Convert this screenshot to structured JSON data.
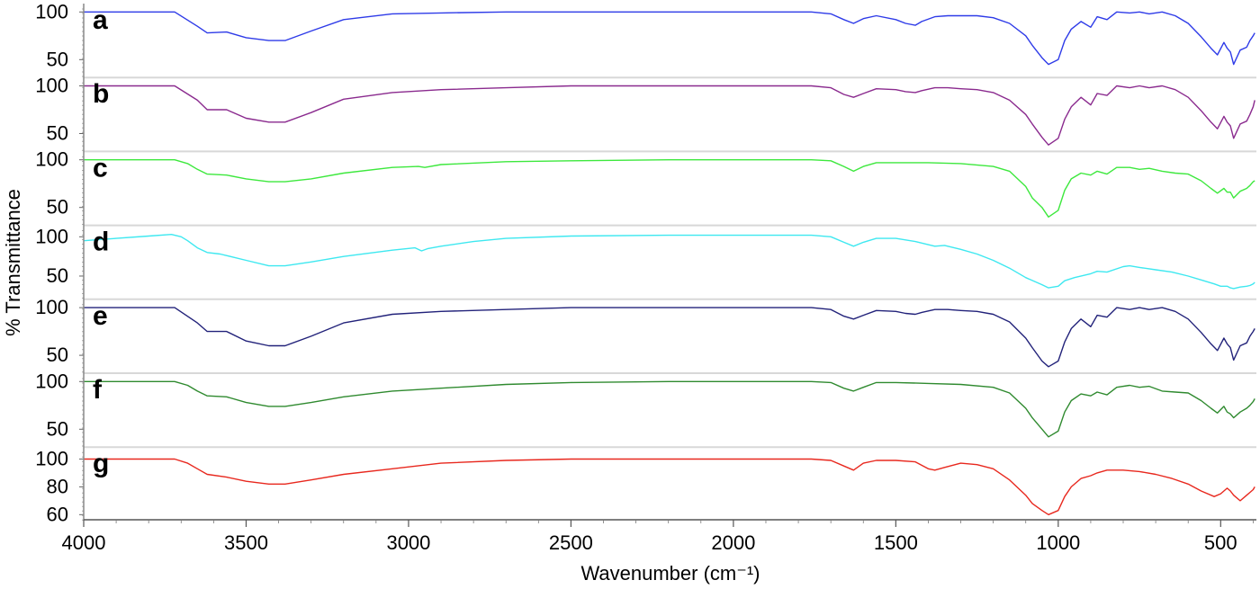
{
  "chart_data": {
    "type": "line",
    "title": "",
    "xlabel": "Wavenumber (cm⁻¹)",
    "ylabel": "% Transmittance",
    "xlim": [
      4000,
      390
    ],
    "x_ticks": [
      "4000",
      "3500",
      "3000",
      "2500",
      "2000",
      "1500",
      "1000",
      "500"
    ],
    "x_tick_values": [
      4000,
      3500,
      3000,
      2500,
      2000,
      1500,
      1000,
      500
    ],
    "grid": false,
    "legend": "none",
    "panels": [
      {
        "label": "a",
        "color": "#2e3be8",
        "ylim": [
          35,
          105
        ],
        "y_ticks": [
          "100",
          "50"
        ],
        "y_tick_values": [
          100,
          50
        ],
        "x": [
          4000,
          3720,
          3650,
          3620,
          3560,
          3500,
          3430,
          3380,
          3300,
          3200,
          3050,
          2900,
          2700,
          2500,
          2200,
          1900,
          1760,
          1700,
          1660,
          1630,
          1600,
          1560,
          1500,
          1470,
          1440,
          1420,
          1380,
          1340,
          1300,
          1250,
          1200,
          1150,
          1100,
          1080,
          1050,
          1030,
          1000,
          980,
          960,
          930,
          900,
          880,
          850,
          820,
          780,
          750,
          720,
          680,
          640,
          600,
          560,
          530,
          510,
          490,
          480,
          470,
          460,
          440,
          420,
          410,
          400,
          395
        ],
        "y": [
          100,
          100,
          85,
          78,
          79,
          73,
          70,
          70,
          80,
          92,
          98,
          99,
          100,
          100,
          100,
          100,
          100,
          98,
          92,
          88,
          93,
          96,
          92,
          88,
          86,
          90,
          95,
          96,
          96,
          96,
          94,
          88,
          75,
          65,
          52,
          45,
          50,
          70,
          82,
          90,
          84,
          95,
          92,
          100,
          99,
          100,
          98,
          100,
          96,
          88,
          74,
          62,
          55,
          68,
          62,
          58,
          45,
          60,
          63,
          70,
          75,
          78
        ]
      },
      {
        "label": "b",
        "color": "#8a2a8e",
        "ylim": [
          35,
          105
        ],
        "y_ticks": [
          "100",
          "50"
        ],
        "y_tick_values": [
          100,
          50
        ],
        "x": [
          4000,
          3720,
          3650,
          3620,
          3560,
          3500,
          3430,
          3380,
          3300,
          3200,
          3050,
          2900,
          2700,
          2500,
          2200,
          1900,
          1760,
          1700,
          1660,
          1630,
          1600,
          1560,
          1500,
          1470,
          1440,
          1420,
          1380,
          1340,
          1300,
          1250,
          1200,
          1150,
          1100,
          1080,
          1050,
          1030,
          1000,
          980,
          960,
          930,
          900,
          880,
          850,
          820,
          780,
          750,
          720,
          680,
          640,
          600,
          560,
          530,
          510,
          490,
          480,
          470,
          460,
          440,
          420,
          410,
          400,
          395
        ],
        "y": [
          100,
          100,
          85,
          75,
          75,
          66,
          62,
          62,
          72,
          86,
          93,
          96,
          98,
          100,
          100,
          100,
          100,
          98,
          91,
          88,
          92,
          97,
          96,
          94,
          93,
          95,
          98,
          98,
          97,
          96,
          93,
          85,
          70,
          60,
          46,
          38,
          45,
          65,
          78,
          88,
          80,
          92,
          90,
          100,
          98,
          100,
          98,
          100,
          96,
          88,
          74,
          62,
          55,
          68,
          62,
          58,
          45,
          60,
          63,
          70,
          78,
          85
        ]
      },
      {
        "label": "c",
        "color": "#3de83d",
        "ylim": [
          35,
          105
        ],
        "y_ticks": [
          "100",
          "50"
        ],
        "y_tick_values": [
          100,
          50
        ],
        "x": [
          4000,
          3720,
          3680,
          3650,
          3620,
          3560,
          3500,
          3430,
          3380,
          3300,
          3200,
          3050,
          2970,
          2950,
          2900,
          2700,
          2500,
          2200,
          1900,
          1760,
          1700,
          1660,
          1630,
          1600,
          1560,
          1500,
          1400,
          1300,
          1200,
          1150,
          1100,
          1080,
          1050,
          1030,
          1000,
          980,
          960,
          930,
          900,
          880,
          850,
          820,
          780,
          750,
          720,
          680,
          640,
          600,
          560,
          530,
          510,
          490,
          480,
          470,
          460,
          440,
          420,
          410,
          400,
          395
        ],
        "y": [
          100,
          100,
          96,
          90,
          85,
          84,
          80,
          77,
          77,
          80,
          86,
          92,
          93,
          92,
          95,
          98,
          99,
          100,
          100,
          100,
          99,
          93,
          88,
          93,
          97,
          97,
          97,
          96,
          93,
          88,
          72,
          60,
          50,
          40,
          47,
          68,
          80,
          86,
          84,
          88,
          85,
          92,
          92,
          90,
          91,
          88,
          86,
          85,
          78,
          70,
          65,
          70,
          66,
          66,
          60,
          67,
          70,
          73,
          77,
          78
        ]
      },
      {
        "label": "d",
        "color": "#3ee8f0",
        "ylim": [
          25,
          110
        ],
        "y_ticks": [
          "100",
          "50"
        ],
        "y_tick_values": [
          100,
          50
        ],
        "x": [
          4000,
          3900,
          3800,
          3730,
          3700,
          3680,
          3650,
          3620,
          3580,
          3500,
          3430,
          3380,
          3300,
          3200,
          3050,
          2980,
          2960,
          2940,
          2900,
          2800,
          2700,
          2500,
          2200,
          1900,
          1760,
          1700,
          1660,
          1630,
          1600,
          1560,
          1500,
          1440,
          1400,
          1380,
          1350,
          1300,
          1250,
          1200,
          1150,
          1100,
          1050,
          1030,
          1000,
          980,
          950,
          900,
          880,
          850,
          800,
          780,
          750,
          700,
          650,
          600,
          560,
          520,
          500,
          480,
          470,
          460,
          440,
          420,
          410,
          400,
          395
        ],
        "y": [
          95,
          98,
          101,
          103,
          100,
          95,
          86,
          80,
          78,
          70,
          63,
          63,
          68,
          75,
          83,
          86,
          82,
          85,
          88,
          94,
          98,
          101,
          102,
          102,
          102,
          100,
          93,
          88,
          93,
          98,
          98,
          94,
          90,
          88,
          89,
          84,
          78,
          70,
          60,
          48,
          39,
          35,
          37,
          44,
          48,
          53,
          56,
          55,
          62,
          63,
          61,
          58,
          55,
          50,
          45,
          40,
          37,
          37,
          35,
          34,
          36,
          37,
          38,
          40,
          42
        ]
      },
      {
        "label": "e",
        "color": "#22227a",
        "ylim": [
          35,
          105
        ],
        "y_ticks": [
          "100",
          "50"
        ],
        "y_tick_values": [
          100,
          50
        ],
        "x": [
          4000,
          3720,
          3650,
          3620,
          3560,
          3500,
          3430,
          3380,
          3300,
          3200,
          3050,
          2900,
          2700,
          2500,
          2200,
          1900,
          1760,
          1700,
          1660,
          1630,
          1600,
          1560,
          1500,
          1470,
          1440,
          1420,
          1380,
          1340,
          1300,
          1250,
          1200,
          1150,
          1100,
          1080,
          1050,
          1030,
          1000,
          980,
          960,
          930,
          900,
          880,
          850,
          820,
          780,
          750,
          720,
          680,
          640,
          600,
          560,
          530,
          510,
          490,
          480,
          470,
          460,
          440,
          420,
          410,
          400,
          395
        ],
        "y": [
          100,
          100,
          84,
          75,
          75,
          65,
          60,
          60,
          70,
          84,
          93,
          96,
          98,
          100,
          100,
          100,
          100,
          98,
          91,
          88,
          92,
          97,
          96,
          94,
          93,
          95,
          98,
          98,
          97,
          96,
          93,
          85,
          68,
          58,
          44,
          38,
          44,
          64,
          78,
          88,
          80,
          92,
          90,
          100,
          98,
          100,
          98,
          100,
          96,
          88,
          74,
          62,
          55,
          68,
          62,
          58,
          45,
          60,
          63,
          70,
          75,
          78
        ]
      },
      {
        "label": "f",
        "color": "#2f8a2f",
        "ylim": [
          35,
          105
        ],
        "y_ticks": [
          "100",
          "50"
        ],
        "y_tick_values": [
          100,
          50
        ],
        "x": [
          4000,
          3720,
          3680,
          3650,
          3620,
          3560,
          3500,
          3430,
          3380,
          3300,
          3200,
          3050,
          2950,
          2900,
          2700,
          2500,
          2200,
          1900,
          1760,
          1700,
          1660,
          1630,
          1600,
          1560,
          1500,
          1400,
          1300,
          1200,
          1150,
          1100,
          1080,
          1050,
          1030,
          1000,
          980,
          960,
          930,
          900,
          880,
          850,
          820,
          780,
          750,
          720,
          680,
          640,
          600,
          560,
          530,
          510,
          490,
          480,
          470,
          460,
          440,
          420,
          410,
          400,
          395
        ],
        "y": [
          100,
          100,
          96,
          90,
          85,
          84,
          78,
          74,
          74,
          78,
          84,
          90,
          92,
          93,
          97,
          99,
          100,
          100,
          100,
          99,
          93,
          90,
          94,
          99,
          99,
          98,
          97,
          94,
          88,
          72,
          62,
          50,
          42,
          48,
          68,
          80,
          87,
          85,
          89,
          86,
          94,
          96,
          94,
          95,
          90,
          89,
          88,
          80,
          72,
          67,
          74,
          68,
          66,
          62,
          68,
          72,
          75,
          79,
          82
        ]
      },
      {
        "label": "g",
        "color": "#e8281e",
        "ylim": [
          58,
          106
        ],
        "y_ticks": [
          "100",
          "80",
          "60"
        ],
        "y_tick_values": [
          100,
          80,
          60
        ],
        "x": [
          4000,
          3720,
          3680,
          3650,
          3620,
          3560,
          3500,
          3430,
          3380,
          3300,
          3200,
          3050,
          2900,
          2700,
          2500,
          2200,
          1900,
          1760,
          1700,
          1660,
          1630,
          1600,
          1560,
          1500,
          1440,
          1400,
          1380,
          1350,
          1300,
          1250,
          1200,
          1150,
          1100,
          1080,
          1050,
          1030,
          1000,
          980,
          960,
          930,
          900,
          880,
          850,
          800,
          750,
          700,
          650,
          600,
          560,
          520,
          500,
          480,
          470,
          460,
          440,
          420,
          410,
          400,
          395
        ],
        "y": [
          100,
          100,
          97,
          93,
          89,
          87,
          84,
          82,
          82,
          85,
          89,
          93,
          97,
          99,
          100,
          100,
          100,
          100,
          99,
          95,
          92,
          97,
          99,
          99,
          98,
          93,
          92,
          94,
          97,
          96,
          93,
          85,
          74,
          68,
          63,
          60,
          63,
          73,
          80,
          86,
          88,
          90,
          92,
          92,
          91,
          89,
          86,
          82,
          77,
          73,
          75,
          79,
          77,
          74,
          70,
          74,
          76,
          78,
          80
        ]
      }
    ]
  }
}
